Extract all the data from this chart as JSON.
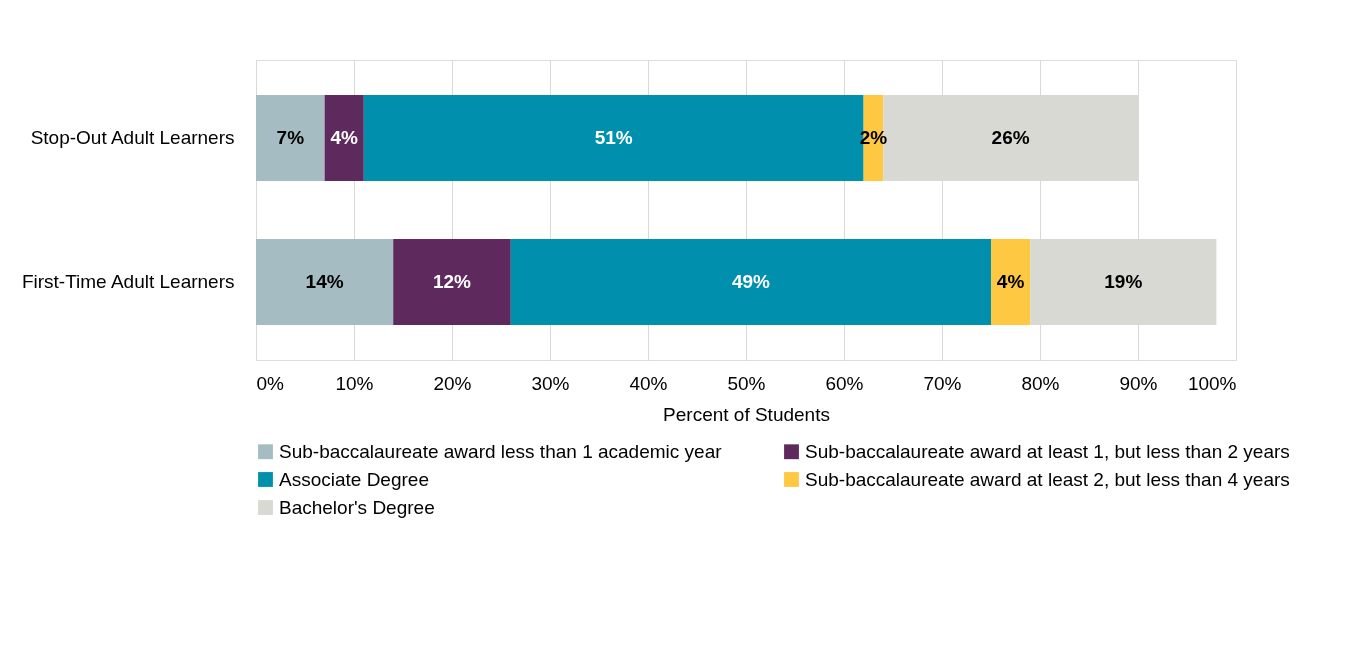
{
  "chart_data": {
    "type": "bar",
    "orientation": "horizontal",
    "stacked": true,
    "xlabel": "Percent of Students",
    "categories": [
      "Stop-Out Adult Learners",
      "First-Time Adult Learners"
    ],
    "series": [
      {
        "name": "Sub-baccalaureate award less than 1 academic year",
        "color": "#a5bcc3",
        "values": [
          7,
          14
        ],
        "value_labels": [
          "7%",
          "14%"
        ]
      },
      {
        "name": "Sub-baccalaureate award at least 1, but less than 2 years",
        "color": "#5e2a5d",
        "values": [
          4,
          12
        ],
        "value_labels": [
          "4%",
          "12%"
        ]
      },
      {
        "name": "Associate Degree",
        "color": "#008fac",
        "values": [
          51,
          49
        ],
        "value_labels": [
          "51%",
          "49%"
        ]
      },
      {
        "name": "Sub-baccalaureate award at least 2, but less than 4 years",
        "color": "#fec843",
        "values": [
          2,
          4
        ],
        "value_labels": [
          "2%",
          "4%"
        ]
      },
      {
        "name": "Bachelor's Degree",
        "color": "#d9d9d4",
        "values": [
          26,
          19
        ],
        "value_labels": [
          "26%",
          "19%"
        ]
      }
    ],
    "xlim": [
      0,
      100
    ],
    "xticks": [
      {
        "value": 0,
        "label": "0%"
      },
      {
        "value": 10,
        "label": "10%"
      },
      {
        "value": 20,
        "label": "20%"
      },
      {
        "value": 30,
        "label": "30%"
      },
      {
        "value": 40,
        "label": "40%"
      },
      {
        "value": 50,
        "label": "50%"
      },
      {
        "value": 60,
        "label": "60%"
      },
      {
        "value": 70,
        "label": "70%"
      },
      {
        "value": 80,
        "label": "80%"
      },
      {
        "value": 90,
        "label": "90%"
      },
      {
        "value": 100,
        "label": "100%"
      }
    ],
    "grid": "x",
    "legend": "bottom"
  }
}
